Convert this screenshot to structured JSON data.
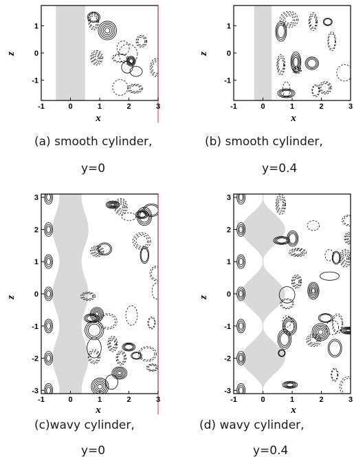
{
  "panels": [
    {
      "id": "a",
      "caption_line1": "(a)  smooth cylinder,",
      "caption_line2": "y=0",
      "x_label": "x",
      "z_label": "z",
      "x_ticks": [
        "-1",
        "0",
        "1",
        "2",
        "3"
      ],
      "z_ticks": [
        "1",
        "0",
        "-1"
      ],
      "x_range": [
        -1,
        3
      ],
      "z_range": [
        -1.75,
        1.75
      ],
      "cylinder": "smooth",
      "cylinder_halfwidth": 0.5
    },
    {
      "id": "b",
      "caption_line1": "(b) smooth cylinder,",
      "caption_line2": "y=0.4",
      "x_label": "x",
      "z_label": "z",
      "x_ticks": [
        "-1",
        "0",
        "1",
        "2",
        "3"
      ],
      "z_ticks": [
        "1",
        "0",
        "-1"
      ],
      "x_range": [
        -1,
        3
      ],
      "z_range": [
        -1.75,
        1.75
      ],
      "cylinder": "smooth",
      "cylinder_halfwidth": 0.3
    },
    {
      "id": "c",
      "caption_line1": "(c)wavy cylinder,",
      "caption_line2": "y=0",
      "x_label": "x",
      "z_label": "z",
      "x_ticks": [
        "-1",
        "0",
        "1",
        "2",
        "3"
      ],
      "z_ticks": [
        "3",
        "2",
        "1",
        "0",
        "-1",
        "-2",
        "-3"
      ],
      "x_range": [
        -1,
        3
      ],
      "z_range": [
        -3.1,
        3.1
      ],
      "cylinder": "wavy"
    },
    {
      "id": "d",
      "caption_line1": "(d) wavy cylinder,",
      "caption_line2": "y=0.4",
      "x_label": "x",
      "z_label": "z",
      "x_ticks": [
        "-1",
        "0",
        "1",
        "2",
        "3"
      ],
      "z_ticks": [
        "3",
        "2",
        "1",
        "0",
        "-1",
        "-2",
        "-3"
      ],
      "x_range": [
        -1,
        3
      ],
      "z_range": [
        -3.1,
        3.1
      ],
      "cylinder": "wavy-pinched"
    }
  ],
  "colors": {
    "cylinder": "#d9d9d9",
    "line": "#000000",
    "edge_accent": "#e03040"
  }
}
